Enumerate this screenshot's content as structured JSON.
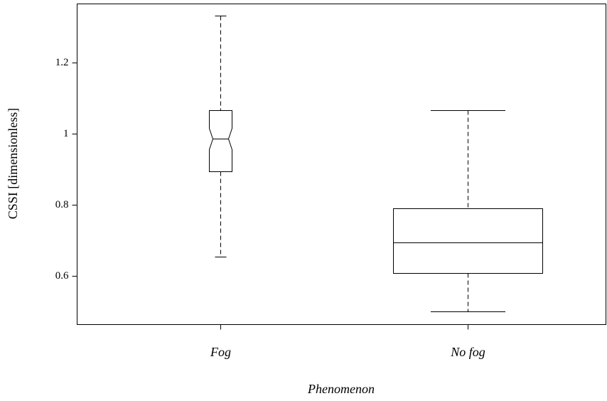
{
  "chart_data": {
    "type": "box",
    "categories": [
      "Fog",
      "No fog"
    ],
    "boxes": [
      {
        "min": 0.654,
        "q1": 0.894,
        "median": 0.986,
        "q3": 1.066,
        "max": 1.332
      },
      {
        "min": 0.5,
        "q1": 0.608,
        "median": 0.694,
        "q3": 0.79,
        "max": 1.066
      }
    ],
    "xlabel": "Phenomenon",
    "ylabel": "CSSI [dimensionless]",
    "ylim": [
      0.464,
      1.366
    ],
    "yticks": [
      0.6,
      0.8,
      1.0,
      1.2
    ],
    "color": "#000000"
  }
}
